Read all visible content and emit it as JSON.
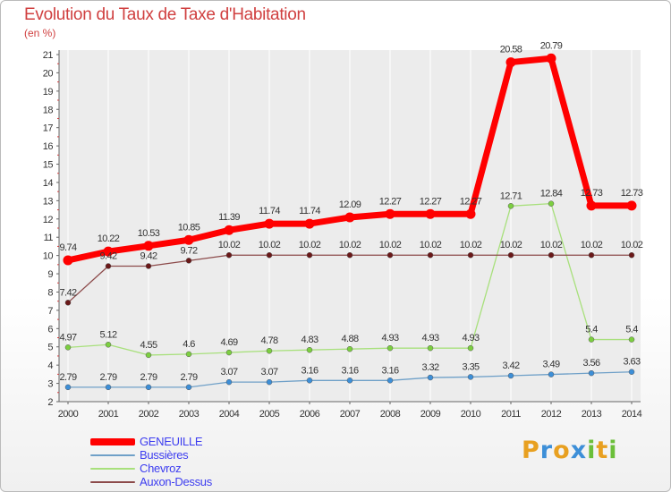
{
  "title": "Evolution du Taux de Taxe d'Habitation",
  "unit_label": "(en %)",
  "logo": {
    "letters": [
      "P",
      "r",
      "o",
      "x",
      "i",
      "t",
      "i"
    ],
    "colors": [
      "#e8a020",
      "#3d8fd8",
      "#e8a020",
      "#3d8fd8",
      "#6bbf3a",
      "#e8a020",
      "#6bbf3a"
    ]
  },
  "chart_data": {
    "type": "line",
    "title": "Evolution du Taux de Taxe d'Habitation",
    "ylabel": "(en %)",
    "xlabel": "",
    "x": [
      "2000",
      "2001",
      "2002",
      "2003",
      "2004",
      "2005",
      "2006",
      "2007",
      "2008",
      "2009",
      "2010",
      "2011",
      "2012",
      "2013",
      "2014"
    ],
    "ylim": [
      2,
      21
    ],
    "yticks": [
      2,
      3,
      4,
      5,
      6,
      7,
      8,
      9,
      10,
      11,
      12,
      13,
      14,
      15,
      16,
      17,
      18,
      19,
      20,
      21
    ],
    "grid": false,
    "legend_position": "bottom-left",
    "series": [
      {
        "name": "GENEUILLE",
        "color": "#ff0000",
        "marker": "#ff0000",
        "text_color": "#3d3df0",
        "width": 7,
        "values": [
          9.74,
          10.22,
          10.53,
          10.85,
          11.39,
          11.74,
          11.74,
          12.09,
          12.27,
          12.27,
          12.27,
          20.58,
          20.79,
          12.73,
          12.73
        ],
        "labels": [
          "9.74",
          "10.22",
          "10.53",
          "10.85",
          "11.39",
          "11.74",
          "11.74",
          "12.09",
          "12.27",
          "12.27",
          "12.27",
          "20.58",
          "20.79",
          "12.73",
          "12.73"
        ]
      },
      {
        "name": "Bussières",
        "color": "#6fa0c8",
        "marker": "#3d8fd8",
        "text_color": "#3d3df0",
        "width": 1.3,
        "values": [
          2.79,
          2.79,
          2.79,
          2.79,
          3.07,
          3.07,
          3.16,
          3.16,
          3.16,
          3.32,
          3.35,
          3.42,
          3.49,
          3.56,
          3.63
        ],
        "labels": [
          "2.79",
          "2.79",
          "2.79",
          "2.79",
          "3.07",
          "3.07",
          "3.16",
          "3.16",
          "3.16",
          "3.32",
          "3.35",
          "3.42",
          "3.49",
          "3.56",
          "3.63"
        ]
      },
      {
        "name": "Chevroz",
        "color": "#a8e07c",
        "marker": "#7ccf40",
        "text_color": "#3d3df0",
        "width": 1.3,
        "values": [
          4.97,
          5.12,
          4.55,
          4.6,
          4.69,
          4.78,
          4.83,
          4.88,
          4.93,
          4.93,
          4.93,
          12.71,
          12.84,
          5.4,
          5.4
        ],
        "labels": [
          "4.97",
          "5.12",
          "4.55",
          "4.6",
          "4.69",
          "4.78",
          "4.83",
          "4.88",
          "4.93",
          "4.93",
          "4.93",
          "12.71",
          "12.84",
          "5.4",
          "5.4"
        ]
      },
      {
        "name": "Auxon-Dessus",
        "color": "#8c4a4a",
        "marker": "#6a1818",
        "text_color": "#3d3df0",
        "width": 1.3,
        "values": [
          7.42,
          9.42,
          9.42,
          9.72,
          10.02,
          10.02,
          10.02,
          10.02,
          10.02,
          10.02,
          10.02,
          10.02,
          10.02,
          10.02,
          10.02
        ],
        "labels": [
          "7.42",
          "9.42",
          "9.42",
          "9.72",
          "10.02",
          "10.02",
          "10.02",
          "10.02",
          "10.02",
          "10.02",
          "10.02",
          "10.02",
          "10.02",
          "10.02",
          "10.02"
        ]
      }
    ]
  }
}
